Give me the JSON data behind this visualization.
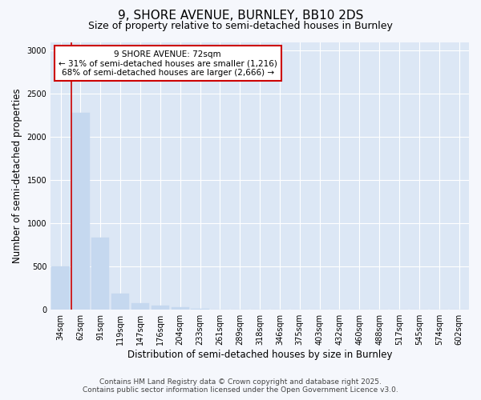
{
  "title": "9, SHORE AVENUE, BURNLEY, BB10 2DS",
  "subtitle": "Size of property relative to semi-detached houses in Burnley",
  "xlabel": "Distribution of semi-detached houses by size in Burnley",
  "ylabel": "Number of semi-detached properties",
  "categories": [
    "34sqm",
    "62sqm",
    "91sqm",
    "119sqm",
    "147sqm",
    "176sqm",
    "204sqm",
    "233sqm",
    "261sqm",
    "289sqm",
    "318sqm",
    "346sqm",
    "375sqm",
    "403sqm",
    "432sqm",
    "460sqm",
    "488sqm",
    "517sqm",
    "545sqm",
    "574sqm",
    "602sqm"
  ],
  "values": [
    500,
    2280,
    840,
    190,
    80,
    45,
    30,
    15,
    5,
    3,
    1,
    0,
    0,
    0,
    0,
    0,
    0,
    0,
    0,
    0,
    0
  ],
  "bar_color": "#c5d8ef",
  "bar_edge_color": "#c5d8ef",
  "ylim": [
    0,
    3100
  ],
  "yticks": [
    0,
    500,
    1000,
    1500,
    2000,
    2500,
    3000
  ],
  "red_line_x": 1,
  "red_line_color": "#cc0000",
  "annotation_text_line1": "9 SHORE AVENUE: 72sqm",
  "annotation_text_line2": "← 31% of semi-detached houses are smaller (1,216)",
  "annotation_text_line3": "68% of semi-detached houses are larger (2,666) →",
  "annotation_box_color": "#ffffff",
  "annotation_box_edge_color": "#cc0000",
  "bg_color": "#f5f7fc",
  "plot_bg_color": "#dce7f5",
  "grid_color": "#ffffff",
  "footer_line1": "Contains HM Land Registry data © Crown copyright and database right 2025.",
  "footer_line2": "Contains public sector information licensed under the Open Government Licence v3.0.",
  "title_fontsize": 11,
  "subtitle_fontsize": 9,
  "axis_label_fontsize": 8.5,
  "tick_fontsize": 7,
  "annotation_fontsize": 7.5,
  "footer_fontsize": 6.5
}
